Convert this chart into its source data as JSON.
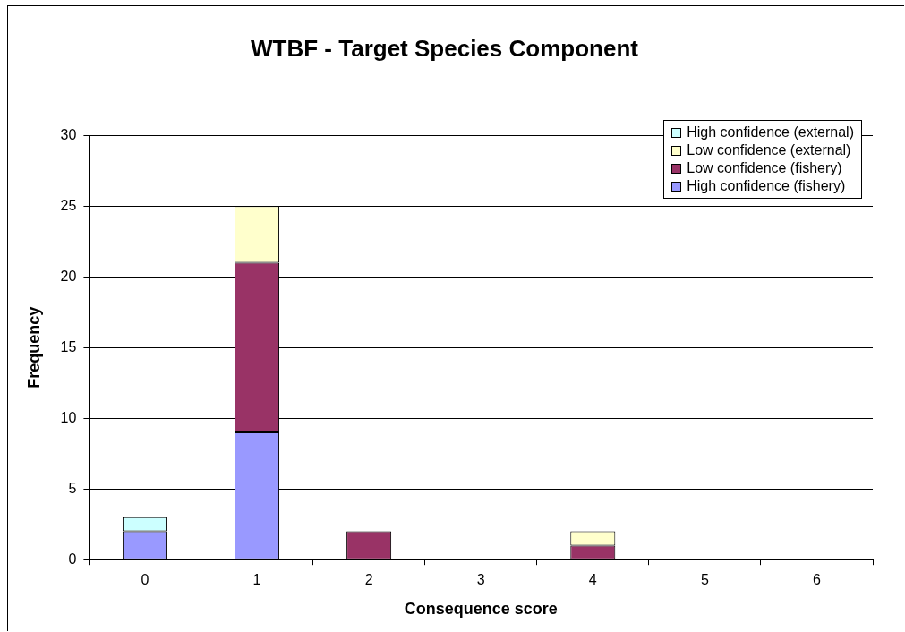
{
  "chart_data": {
    "type": "bar",
    "title": "WTBF - Target Species Component",
    "xlabel": "Consequence score",
    "ylabel": "Frequency",
    "categories": [
      "0",
      "1",
      "2",
      "3",
      "4",
      "5",
      "6"
    ],
    "series": [
      {
        "name": "High confidence (fishery)",
        "color": "#9999ff",
        "values": [
          2,
          9,
          null,
          null,
          null,
          null,
          null
        ]
      },
      {
        "name": "Low confidence (fishery)",
        "color": "#993366",
        "values": [
          null,
          12,
          2,
          null,
          1,
          null,
          null
        ]
      },
      {
        "name": "Low confidence (external)",
        "color": "#ffffcc",
        "values": [
          null,
          4,
          null,
          null,
          1,
          null,
          null
        ]
      },
      {
        "name": "High confidence (external)",
        "color": "#ccffff",
        "values": [
          1,
          null,
          null,
          null,
          null,
          null,
          null
        ]
      }
    ],
    "stacked": true,
    "ylim": [
      0,
      30
    ],
    "yticks": [
      0,
      5,
      10,
      15,
      20,
      25,
      30
    ],
    "grid": "y",
    "legend": "top right"
  }
}
